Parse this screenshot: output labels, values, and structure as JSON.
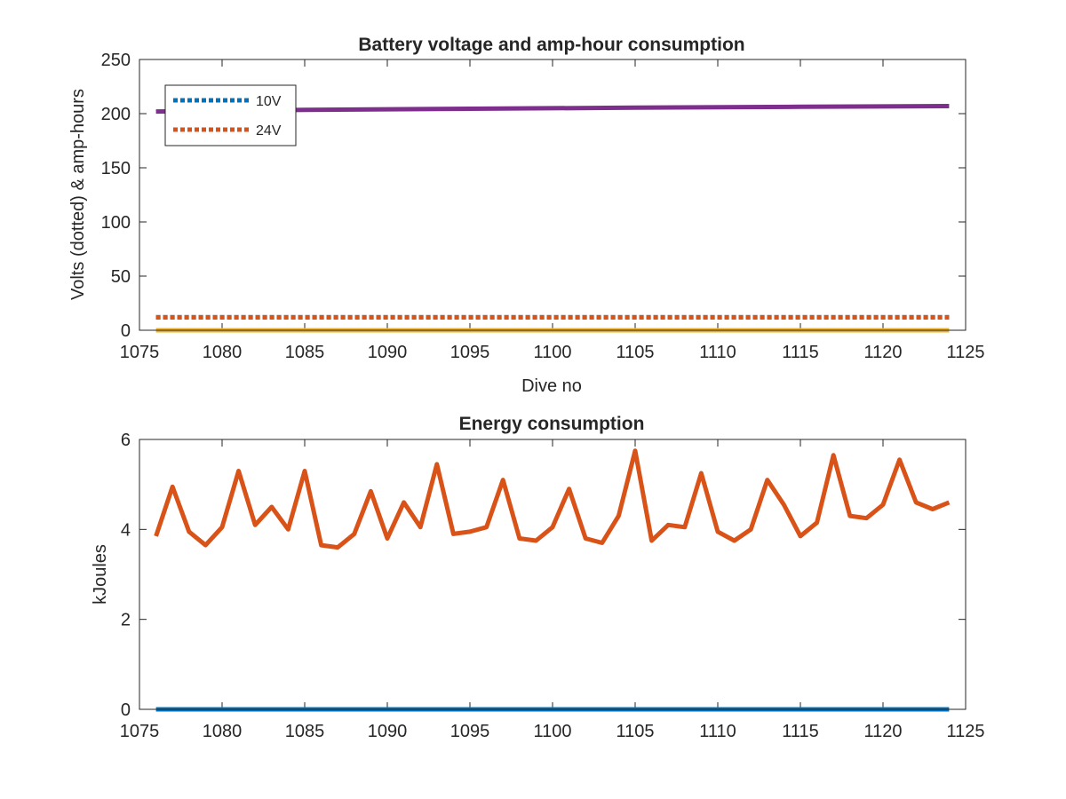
{
  "chart_data": [
    {
      "type": "line",
      "title": "Battery voltage and amp-hour consumption",
      "xlabel": "Dive no",
      "ylabel": "Volts (dotted) & amp-hours",
      "xlim": [
        1075,
        1125
      ],
      "ylim": [
        0,
        250
      ],
      "xticks": [
        1075,
        1080,
        1085,
        1090,
        1095,
        1100,
        1105,
        1110,
        1115,
        1120,
        1125
      ],
      "yticks": [
        0,
        50,
        100,
        150,
        200,
        250
      ],
      "legend": {
        "placement": "top-left",
        "entries": [
          "10V",
          "24V"
        ]
      },
      "series": [
        {
          "name": "10V",
          "style": "dotted",
          "color": "#0072BD",
          "x": [
            1076,
            1124
          ],
          "y": [
            12,
            12
          ]
        },
        {
          "name": "24V",
          "style": "dotted",
          "color": "#D95319",
          "x": [
            1076,
            1124
          ],
          "y": [
            12,
            12
          ]
        },
        {
          "style": "solid",
          "color": "#7E2F8E",
          "x": [
            1076,
            1085,
            1095,
            1105,
            1115,
            1124
          ],
          "y": [
            202,
            203.5,
            204.5,
            205.5,
            206.3,
            207
          ]
        },
        {
          "style": "solid",
          "color": "#EDB120",
          "x": [
            1076,
            1124
          ],
          "y": [
            0,
            0
          ]
        }
      ]
    },
    {
      "type": "line",
      "title": "Energy consumption",
      "xlabel": "",
      "ylabel": "kJoules",
      "xlim": [
        1075,
        1125
      ],
      "ylim": [
        0,
        6
      ],
      "xticks": [
        1075,
        1080,
        1085,
        1090,
        1095,
        1100,
        1105,
        1110,
        1115,
        1120,
        1125
      ],
      "yticks": [
        0,
        2,
        4,
        6
      ],
      "series": [
        {
          "style": "solid",
          "color": "#D95319",
          "x": [
            1076,
            1077,
            1078,
            1079,
            1080,
            1081,
            1082,
            1083,
            1084,
            1085,
            1086,
            1087,
            1088,
            1089,
            1090,
            1091,
            1092,
            1093,
            1094,
            1095,
            1096,
            1097,
            1098,
            1099,
            1100,
            1101,
            1102,
            1103,
            1104,
            1105,
            1106,
            1107,
            1108,
            1109,
            1110,
            1111,
            1112,
            1113,
            1114,
            1115,
            1116,
            1117,
            1118,
            1119,
            1120,
            1121,
            1122,
            1123,
            1124
          ],
          "y": [
            3.85,
            4.95,
            3.95,
            3.65,
            4.05,
            5.3,
            4.1,
            4.5,
            4.0,
            5.3,
            3.65,
            3.6,
            3.9,
            4.85,
            3.8,
            4.6,
            4.05,
            5.45,
            3.9,
            3.95,
            4.05,
            5.1,
            3.8,
            3.75,
            4.05,
            4.9,
            3.8,
            3.7,
            4.3,
            5.75,
            3.75,
            4.1,
            4.05,
            5.25,
            3.95,
            3.75,
            4.0,
            5.1,
            4.55,
            3.85,
            4.15,
            5.65,
            4.3,
            4.25,
            4.55,
            5.55,
            4.6,
            4.45,
            4.6
          ]
        },
        {
          "style": "solid",
          "color": "#0072BD",
          "x": [
            1076,
            1124
          ],
          "y": [
            0,
            0
          ]
        }
      ]
    }
  ]
}
